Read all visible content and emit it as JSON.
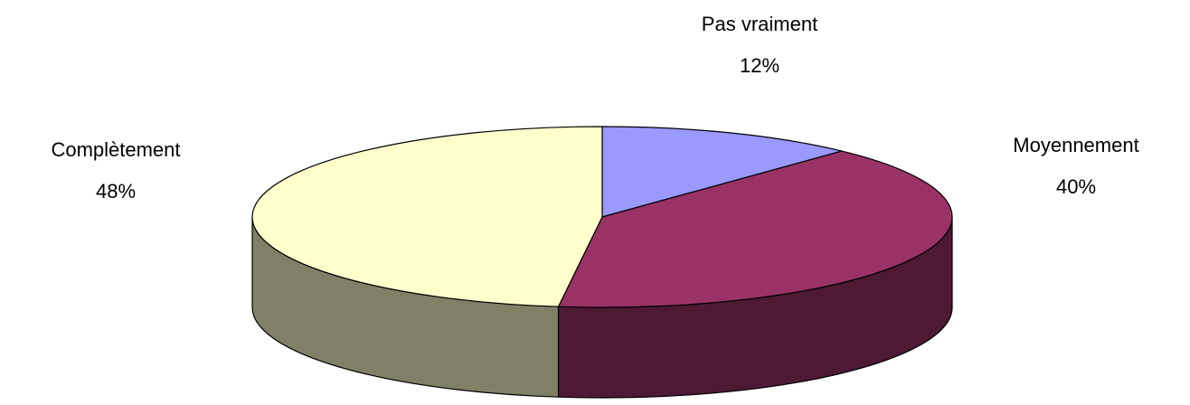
{
  "chart_data": {
    "type": "pie3d",
    "categories": [
      "Pas vraiment",
      "Moyennement",
      "Complètement"
    ],
    "values": [
      12,
      40,
      48
    ],
    "value_labels": [
      "12%",
      "40%",
      "48%"
    ],
    "colors": [
      "#9999ff",
      "#993366",
      "#ffffcc"
    ],
    "side_colors": [
      "#4d4d80",
      "#4d1933",
      "#808066"
    ]
  }
}
